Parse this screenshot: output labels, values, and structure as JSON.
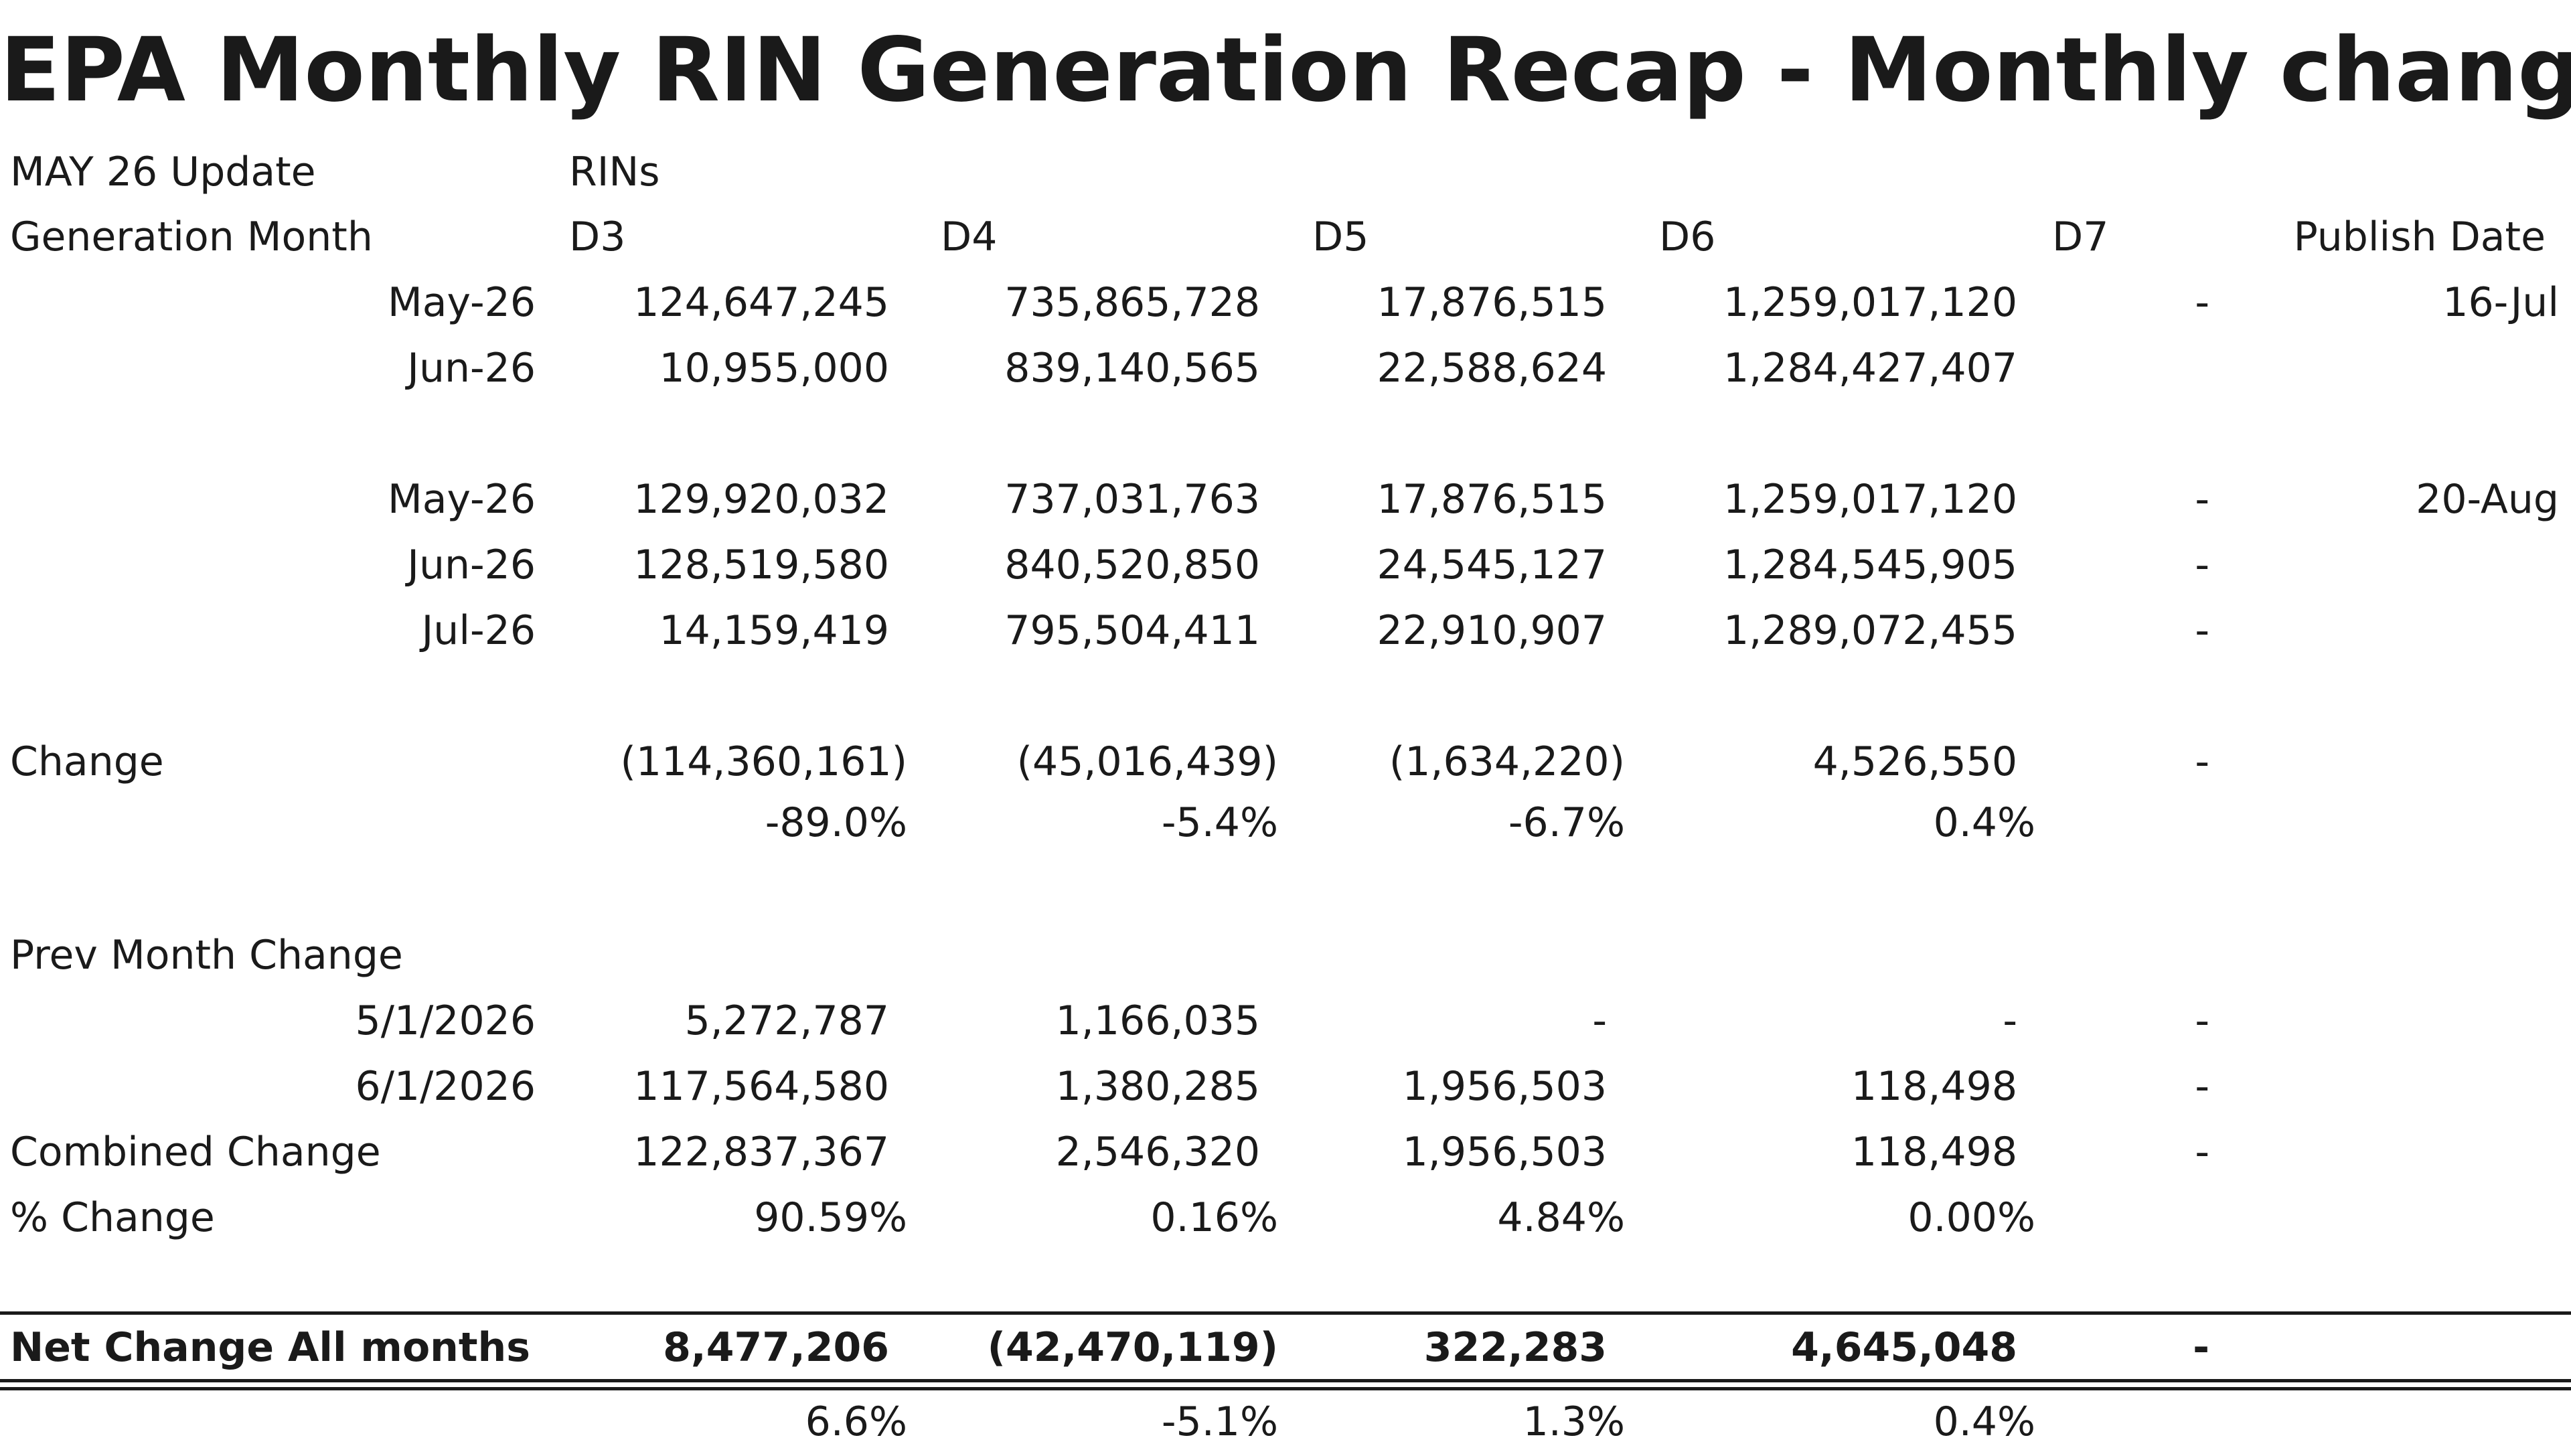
{
  "title": "EPA Monthly RIN Generation Recap - Monthly change",
  "header": {
    "update_label": "MAY 26 Update",
    "rins_label": "RINs",
    "generation_month_label": "Generation Month",
    "columns": [
      "D3",
      "D4",
      "D5",
      "D6",
      "D7"
    ],
    "publish_date_label": "Publish Date"
  },
  "report1": {
    "publish_date": "16-Jul",
    "rows": [
      {
        "month": "May-26",
        "d3": "124,647,245",
        "d4": "735,865,728",
        "d5": "17,876,515",
        "d6": "1,259,017,120",
        "d7": "-"
      },
      {
        "month": "Jun-26",
        "d3": "10,955,000",
        "d4": "839,140,565",
        "d5": "22,588,624",
        "d6": "1,284,427,407",
        "d7": ""
      }
    ]
  },
  "report2": {
    "publish_date": "20-Aug",
    "rows": [
      {
        "month": "May-26",
        "d3": "129,920,032",
        "d4": "737,031,763",
        "d5": "17,876,515",
        "d6": "1,259,017,120",
        "d7": "-"
      },
      {
        "month": "Jun-26",
        "d3": "128,519,580",
        "d4": "840,520,850",
        "d5": "24,545,127",
        "d6": "1,284,545,905",
        "d7": "-"
      },
      {
        "month": "Jul-26",
        "d3": "14,159,419",
        "d4": "795,504,411",
        "d5": "22,910,907",
        "d6": "1,289,072,455",
        "d7": "-"
      }
    ]
  },
  "change": {
    "label": "Change",
    "values": {
      "d3": "(114,360,161)",
      "d4": "(45,016,439)",
      "d5": "(1,634,220)",
      "d6": "4,526,550",
      "d7": "-"
    },
    "percents": {
      "d3": "-89.0%",
      "d4": "-5.4%",
      "d5": "-6.7%",
      "d6": "0.4%"
    }
  },
  "prev_month_change": {
    "label": "Prev Month Change",
    "rows": [
      {
        "date": "5/1/2026",
        "d3": "5,272,787",
        "d4": "1,166,035",
        "d5": "-",
        "d6": "-",
        "d7": "-"
      },
      {
        "date": "6/1/2026",
        "d3": "117,564,580",
        "d4": "1,380,285",
        "d5": "1,956,503",
        "d6": "118,498",
        "d7": "-"
      }
    ]
  },
  "combined_change": {
    "label": "Combined Change",
    "d3": "122,837,367",
    "d4": "2,546,320",
    "d5": "1,956,503",
    "d6": "118,498",
    "d7": "-"
  },
  "pct_change": {
    "label": "% Change",
    "d3": "90.59%",
    "d4": "0.16%",
    "d5": "4.84%",
    "d6": "0.00%"
  },
  "net_change": {
    "label": "Net Change All months",
    "d3": "8,477,206",
    "d4": "(42,470,119)",
    "d5": "322,283",
    "d6": "4,645,048",
    "d7": "-",
    "percents": {
      "d3": "6.6%",
      "d4": "-5.1%",
      "d5": "1.3%",
      "d6": "0.4%"
    }
  }
}
